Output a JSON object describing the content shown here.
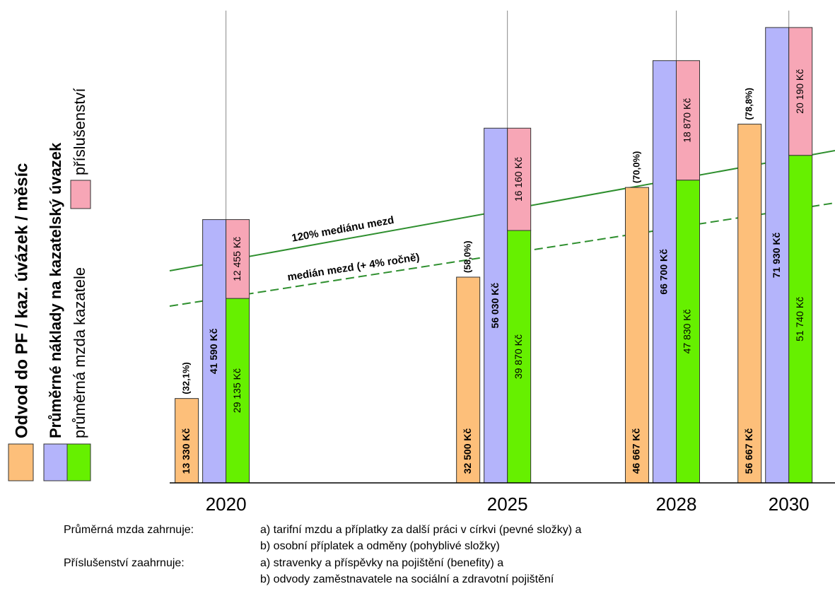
{
  "chart_data": {
    "type": "bar",
    "x": [
      2020,
      2025,
      2028,
      2030
    ],
    "xlim": [
      2019,
      2030.82
    ],
    "xticks": [
      2020,
      2025,
      2028,
      2030
    ],
    "ylim": [
      0,
      74600
    ],
    "grid": true,
    "series": [
      {
        "name": "Odvod do PF / kaz. úvázek / měsíc",
        "color": "#fdbf7a",
        "values": [
          13330,
          32500,
          46667,
          56667
        ],
        "value_labels": [
          "13 330 Kč",
          "32 500 Kč",
          "46 667 Kč",
          "56 667 Kč"
        ],
        "percent_labels": [
          "(32,1%)",
          "(58,0%)",
          "(70,0%)",
          "(78,8%)"
        ]
      },
      {
        "name": "Průměrné náklady na kazatelský úvazek",
        "color": "#b4b4fb",
        "values": [
          41590,
          56030,
          66700,
          71930
        ],
        "value_labels": [
          "41 590 Kč",
          "56 030 Kč",
          "66 700 Kč",
          "71 930 Kč"
        ]
      },
      {
        "name": "průměrná mzda kazatele",
        "color": "#66f000",
        "values": [
          29135,
          39870,
          47830,
          51740
        ],
        "value_labels": [
          "29 135 Kč",
          "39 870 Kč",
          "47 830 Kč",
          "51 740 Kč"
        ]
      },
      {
        "name": "příslušenství",
        "color": "#f7a6b6",
        "values": [
          12455,
          16160,
          18870,
          20190
        ],
        "value_labels": [
          "12 455 Kč",
          "16 160 Kč",
          "18 870 Kč",
          "20 190 Kč"
        ]
      }
    ],
    "reference_lines": [
      {
        "label": "120% mediánu mezd",
        "x": [
          2019,
          2030.82
        ],
        "values": [
          33500,
          52490
        ],
        "dashed": false,
        "color": "#2e8f2e"
      },
      {
        "label": "medián mezd (+ 4% ročně)",
        "x": [
          2019,
          2030.82
        ],
        "values": [
          27920,
          44230
        ],
        "dashed": true,
        "color": "#2e8f2e"
      }
    ],
    "notes": [
      {
        "label": "Průměrná mzda zahrnuje:",
        "lines": [
          "a) tarifní mzdu a příplatky za další práci v církvi (pevné složky) a",
          "b) osobní příplatek a odměny (pohyblivé složky)"
        ]
      },
      {
        "label": "Příslušenství zaahrnuje:",
        "lines": [
          "a) stravenky a příspěvky na pojištění (benefity) a",
          "b) odvody zaměstnavatele na sociální a zdravotní pojištění"
        ]
      }
    ]
  }
}
